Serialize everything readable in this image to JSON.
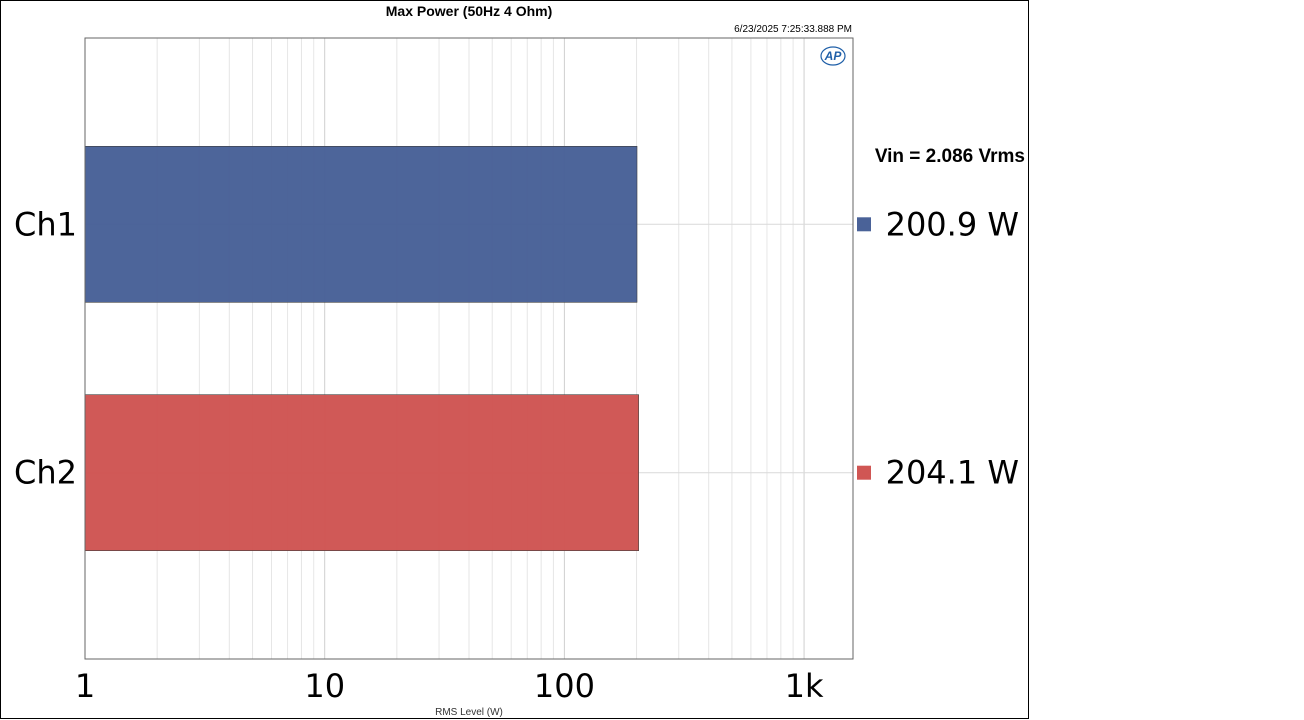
{
  "chart_data": {
    "type": "bar",
    "orientation": "horizontal",
    "title": "Max Power (50Hz 4 Ohm)",
    "timestamp": "6/23/2025 7:25:33.888 PM",
    "xlabel": "RMS Level (W)",
    "ylabel": "",
    "x_scale": "log",
    "xlim": [
      1,
      1600
    ],
    "x_ticks": [
      {
        "value": 1,
        "label": "1"
      },
      {
        "value": 10,
        "label": "10"
      },
      {
        "value": 100,
        "label": "100"
      },
      {
        "value": 1000,
        "label": "1k"
      }
    ],
    "grid": true,
    "annotation": "Vin = 2.086 Vrms",
    "categories": [
      "Ch1",
      "Ch2"
    ],
    "values": [
      200.9,
      204.1
    ],
    "value_labels": [
      "200.9 W",
      "204.1 W"
    ],
    "colors": [
      "#4a6298",
      "#d05654"
    ],
    "legend_placement": "right"
  },
  "logo": {
    "text": "AP",
    "name": "ap-logo"
  }
}
